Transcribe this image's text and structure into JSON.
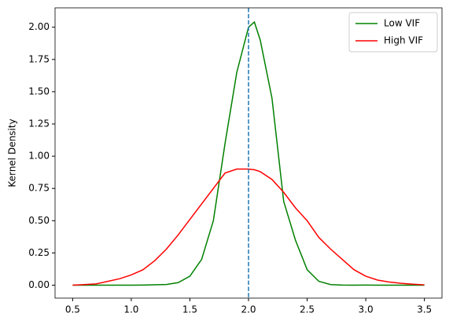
{
  "chart_data": {
    "type": "line",
    "ylabel": "Kernel Density",
    "x": [
      0.5,
      0.6,
      0.7,
      0.8,
      0.9,
      1.0,
      1.1,
      1.2,
      1.3,
      1.4,
      1.5,
      1.6,
      1.7,
      1.8,
      1.9,
      2.0,
      2.05,
      2.1,
      2.2,
      2.3,
      2.4,
      2.5,
      2.6,
      2.7,
      2.8,
      2.9,
      3.0,
      3.1,
      3.2,
      3.3,
      3.4,
      3.5
    ],
    "series": [
      {
        "name": "Low VIF",
        "color": "#008000",
        "values": [
          0,
          0,
          0,
          0,
          0,
          0,
          0.001,
          0.003,
          0.006,
          0.02,
          0.07,
          0.2,
          0.5,
          1.1,
          1.65,
          2.0,
          2.04,
          1.9,
          1.45,
          0.65,
          0.35,
          0.12,
          0.03,
          0.005,
          0.001,
          0,
          0.001,
          0,
          0,
          0,
          0,
          0
        ]
      },
      {
        "name": "High VIF",
        "color": "#ff0000",
        "values": [
          0,
          0.005,
          0.01,
          0.03,
          0.05,
          0.08,
          0.12,
          0.19,
          0.28,
          0.39,
          0.51,
          0.63,
          0.75,
          0.87,
          0.9,
          0.9,
          0.895,
          0.88,
          0.82,
          0.72,
          0.6,
          0.5,
          0.37,
          0.28,
          0.2,
          0.12,
          0.07,
          0.04,
          0.025,
          0.015,
          0.008,
          0.003
        ]
      }
    ],
    "vline": {
      "x": 2.0,
      "color": "#1f77b4"
    },
    "xlim": [
      0.35,
      3.65
    ],
    "ylim": [
      -0.1,
      2.15
    ],
    "xticks": [
      0.5,
      {
        "value": 1,
        "label": "1.0"
      },
      1.5,
      {
        "value": 2,
        "label": "2.0"
      },
      2.5,
      {
        "value": 3,
        "label": "3.0"
      },
      3.5
    ],
    "yticks": [
      {
        "value": 0,
        "label": "0.00"
      },
      {
        "value": 0.25,
        "label": "0.25"
      },
      {
        "value": 0.5,
        "label": "0.50"
      },
      {
        "value": 0.75,
        "label": "0.75"
      },
      {
        "value": 1,
        "label": "1.00"
      },
      {
        "value": 1.25,
        "label": "1.25"
      },
      {
        "value": 1.5,
        "label": "1.50"
      },
      {
        "value": 1.75,
        "label": "1.75"
      },
      {
        "value": 2,
        "label": "2.00"
      }
    ],
    "legend": "upper right",
    "grid": false
  }
}
